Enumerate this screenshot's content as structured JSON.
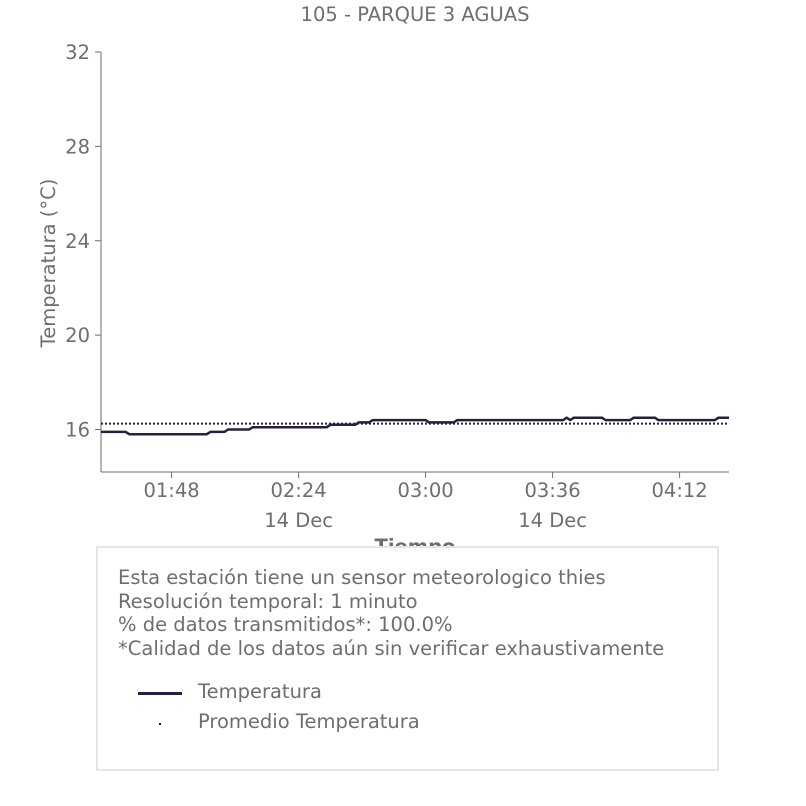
{
  "chart_data": {
    "type": "line",
    "title": "105 - PARQUE 3 AGUAS",
    "xlabel": "Tiempo",
    "ylabel": "Temperatura (°C)",
    "ylim": [
      14.2,
      32
    ],
    "yticks": [
      16,
      20,
      24,
      28,
      32
    ],
    "xlim": [
      "01:28",
      "04:26"
    ],
    "xticks": [
      {
        "value": "01:48",
        "label": "01:48",
        "sublabel": ""
      },
      {
        "value": "02:24",
        "label": "02:24",
        "sublabel": "14 Dec"
      },
      {
        "value": "03:00",
        "label": "03:00",
        "sublabel": ""
      },
      {
        "value": "03:36",
        "label": "03:36",
        "sublabel": "14 Dec"
      },
      {
        "value": "04:12",
        "label": "04:12",
        "sublabel": ""
      }
    ],
    "grid": false,
    "legend_placement": "below",
    "series": [
      {
        "name": "Temperatura",
        "style": "solid",
        "color": "#20223f",
        "points": [
          [
            "01:28",
            15.9
          ],
          [
            "01:35",
            15.9
          ],
          [
            "01:36",
            15.8
          ],
          [
            "01:58",
            15.8
          ],
          [
            "01:59",
            15.9
          ],
          [
            "02:03",
            15.9
          ],
          [
            "02:04",
            16.0
          ],
          [
            "02:10",
            16.0
          ],
          [
            "02:11",
            16.1
          ],
          [
            "02:32",
            16.1
          ],
          [
            "02:33",
            16.2
          ],
          [
            "02:40",
            16.2
          ],
          [
            "02:41",
            16.3
          ],
          [
            "02:44",
            16.3
          ],
          [
            "02:45",
            16.4
          ],
          [
            "03:00",
            16.4
          ],
          [
            "03:01",
            16.3
          ],
          [
            "03:08",
            16.3
          ],
          [
            "03:09",
            16.4
          ],
          [
            "03:39",
            16.4
          ],
          [
            "03:40",
            16.5
          ],
          [
            "03:41",
            16.4
          ],
          [
            "03:42",
            16.5
          ],
          [
            "03:50",
            16.5
          ],
          [
            "03:51",
            16.4
          ],
          [
            "03:58",
            16.4
          ],
          [
            "03:59",
            16.5
          ],
          [
            "04:05",
            16.5
          ],
          [
            "04:06",
            16.4
          ],
          [
            "04:22",
            16.4
          ],
          [
            "04:23",
            16.5
          ],
          [
            "04:26",
            16.5
          ]
        ]
      },
      {
        "name": "Promedio Temperatura",
        "style": "dotted",
        "color": "#20223f",
        "points": [
          [
            "01:28",
            16.25
          ],
          [
            "04:26",
            16.25
          ]
        ]
      }
    ]
  },
  "info": {
    "line1": "Esta estación tiene un sensor meteorologico thies",
    "line2": "Resolución temporal: 1 minuto",
    "line3": "% de datos transmitidos*: 100.0%",
    "line4": "*Calidad de los datos aún sin verificar exhaustivamente"
  }
}
